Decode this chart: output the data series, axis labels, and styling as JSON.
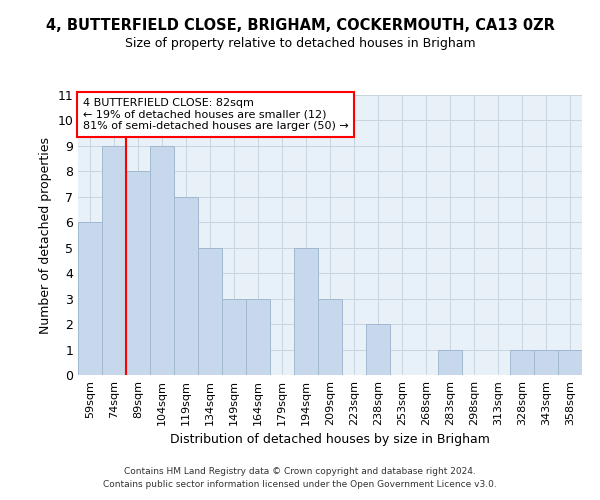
{
  "title1": "4, BUTTERFIELD CLOSE, BRIGHAM, COCKERMOUTH, CA13 0ZR",
  "title2": "Size of property relative to detached houses in Brigham",
  "xlabel": "Distribution of detached houses by size in Brigham",
  "ylabel": "Number of detached properties",
  "categories": [
    "59sqm",
    "74sqm",
    "89sqm",
    "104sqm",
    "119sqm",
    "134sqm",
    "149sqm",
    "164sqm",
    "179sqm",
    "194sqm",
    "209sqm",
    "223sqm",
    "238sqm",
    "253sqm",
    "268sqm",
    "283sqm",
    "298sqm",
    "313sqm",
    "328sqm",
    "343sqm",
    "358sqm"
  ],
  "values": [
    6,
    9,
    8,
    9,
    7,
    5,
    3,
    3,
    0,
    5,
    3,
    0,
    2,
    0,
    0,
    1,
    0,
    0,
    1,
    1,
    1
  ],
  "bar_color": "#c8d8ec",
  "bar_edge_color": "#a0b8d0",
  "ref_line_index": 1,
  "annotation_line1": "4 BUTTERFIELD CLOSE: 82sqm",
  "annotation_line2": "← 19% of detached houses are smaller (12)",
  "annotation_line3": "81% of semi-detached houses are larger (50) →",
  "annotation_box_color": "white",
  "annotation_box_edge": "red",
  "ref_line_color": "red",
  "ylim": [
    0,
    11
  ],
  "yticks": [
    0,
    1,
    2,
    3,
    4,
    5,
    6,
    7,
    8,
    9,
    10,
    11
  ],
  "footer1": "Contains HM Land Registry data © Crown copyright and database right 2024.",
  "footer2": "Contains public sector information licensed under the Open Government Licence v3.0.",
  "bg_color": "#e8f0f8",
  "grid_color": "#c8d4e0"
}
